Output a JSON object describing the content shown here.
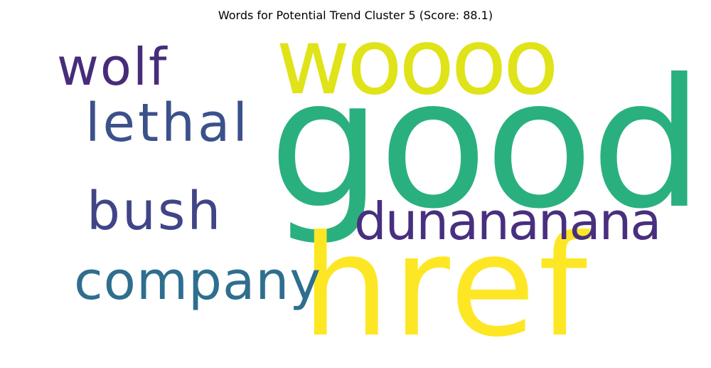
{
  "title": "Words for Potential Trend Cluster 5 (Score: 88.1)",
  "words": [
    {
      "text": "good",
      "color": "#2ab07f"
    },
    {
      "text": "href",
      "color": "#fde725"
    },
    {
      "text": "woooo",
      "color": "#dfe318"
    },
    {
      "text": "dunananana",
      "color": "#482f7f"
    },
    {
      "text": "wolf",
      "color": "#472c7a"
    },
    {
      "text": "lethal",
      "color": "#3b518b"
    },
    {
      "text": "bush",
      "color": "#414487"
    },
    {
      "text": "company",
      "color": "#2e6e8e"
    }
  ]
}
